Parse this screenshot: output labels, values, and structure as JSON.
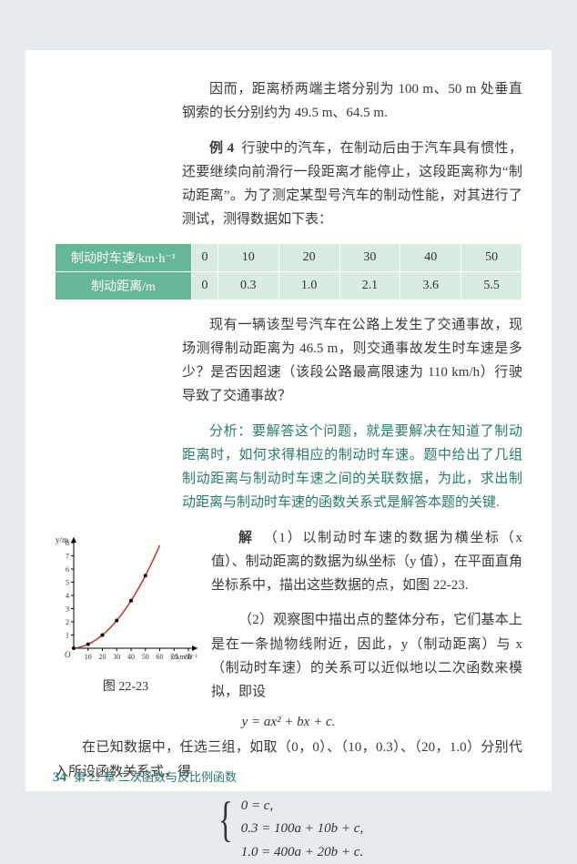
{
  "intro_conclusion": "因而，距离桥两端主塔分别为 100 m、50 m 处垂直钢索的长分别约为 49.5 m、64.5 m.",
  "example": {
    "label": "例 4",
    "text": "行驶中的汽车，在制动后由于汽车具有惯性，还要继续向前滑行一段距离才能停止，这段距离称为“制动距离”。为了测定某型号汽车的制动性能，对其进行了测试，测得数据如下表："
  },
  "table": {
    "header_bg": "#65b795",
    "cell_bg": "#d8ece2",
    "rows": [
      {
        "header": "制动时车速/km·h⁻¹",
        "cells": [
          "0",
          "10",
          "20",
          "30",
          "40",
          "50"
        ]
      },
      {
        "header": "制动距离/m",
        "cells": [
          "0",
          "0.3",
          "1.0",
          "2.1",
          "3.6",
          "5.5"
        ]
      }
    ]
  },
  "question": "现有一辆该型号汽车在公路上发生了交通事故，现场测得制动距离为 46.5 m，则交通事故发生时车速是多少？是否因超速（该段公路最高限速为 110 km/h）行驶导致了交通事故？",
  "analysis": {
    "label": "分析：",
    "text": "要解答这个问题，就是要解决在知道了制动距离时，如何求得相应的制动时车速。题中给出了几组制动距离与制动时车速之间的关联数据，为此，求出制动距离与制动时车速的函数关系式是解答本题的关键."
  },
  "solution": {
    "label": "解",
    "part1": "（1）以制动时车速的数据为横坐标（x 值）、制动距离的数据为纵坐标（y 值），在平面直角坐标系中，描出这些数据的点，如图 22-23.",
    "part2_a": "（2）观察图中描出点的整体分布，它们基本上是在一条抛物线附近，因此，y（制动距离）与 x（制动时车速）的关系可以近似地以二次函数来模拟，即设",
    "formula": "y = ax² + bx + c.",
    "part2_b": "在已知数据中，任选三组，如取（0，0）、（10，0.3）、（20，1.0）分别代入所设函数关系式，得",
    "equations": [
      "0 = c,",
      "0.3 = 100a + 10b + c,",
      "1.0 = 400a + 20b + c."
    ]
  },
  "chart": {
    "caption": "图 22-23",
    "x_label": "x/km·h⁻¹",
    "y_label": "y/m",
    "x_ticks": [
      0,
      10,
      20,
      30,
      40,
      50,
      60,
      70,
      80
    ],
    "y_ticks": [
      0,
      1,
      2,
      3,
      4,
      5,
      6,
      7,
      8
    ],
    "points": [
      [
        0,
        0
      ],
      [
        10,
        0.3
      ],
      [
        20,
        1.0
      ],
      [
        30,
        2.1
      ],
      [
        40,
        3.6
      ],
      [
        50,
        5.5
      ]
    ],
    "curve_color": "#c9302c",
    "axis_color": "#000000",
    "point_color": "#000000",
    "point_radius": 2
  },
  "footer": {
    "page": "34",
    "chapter": "第 22 章 二次函数与反比例函数"
  }
}
